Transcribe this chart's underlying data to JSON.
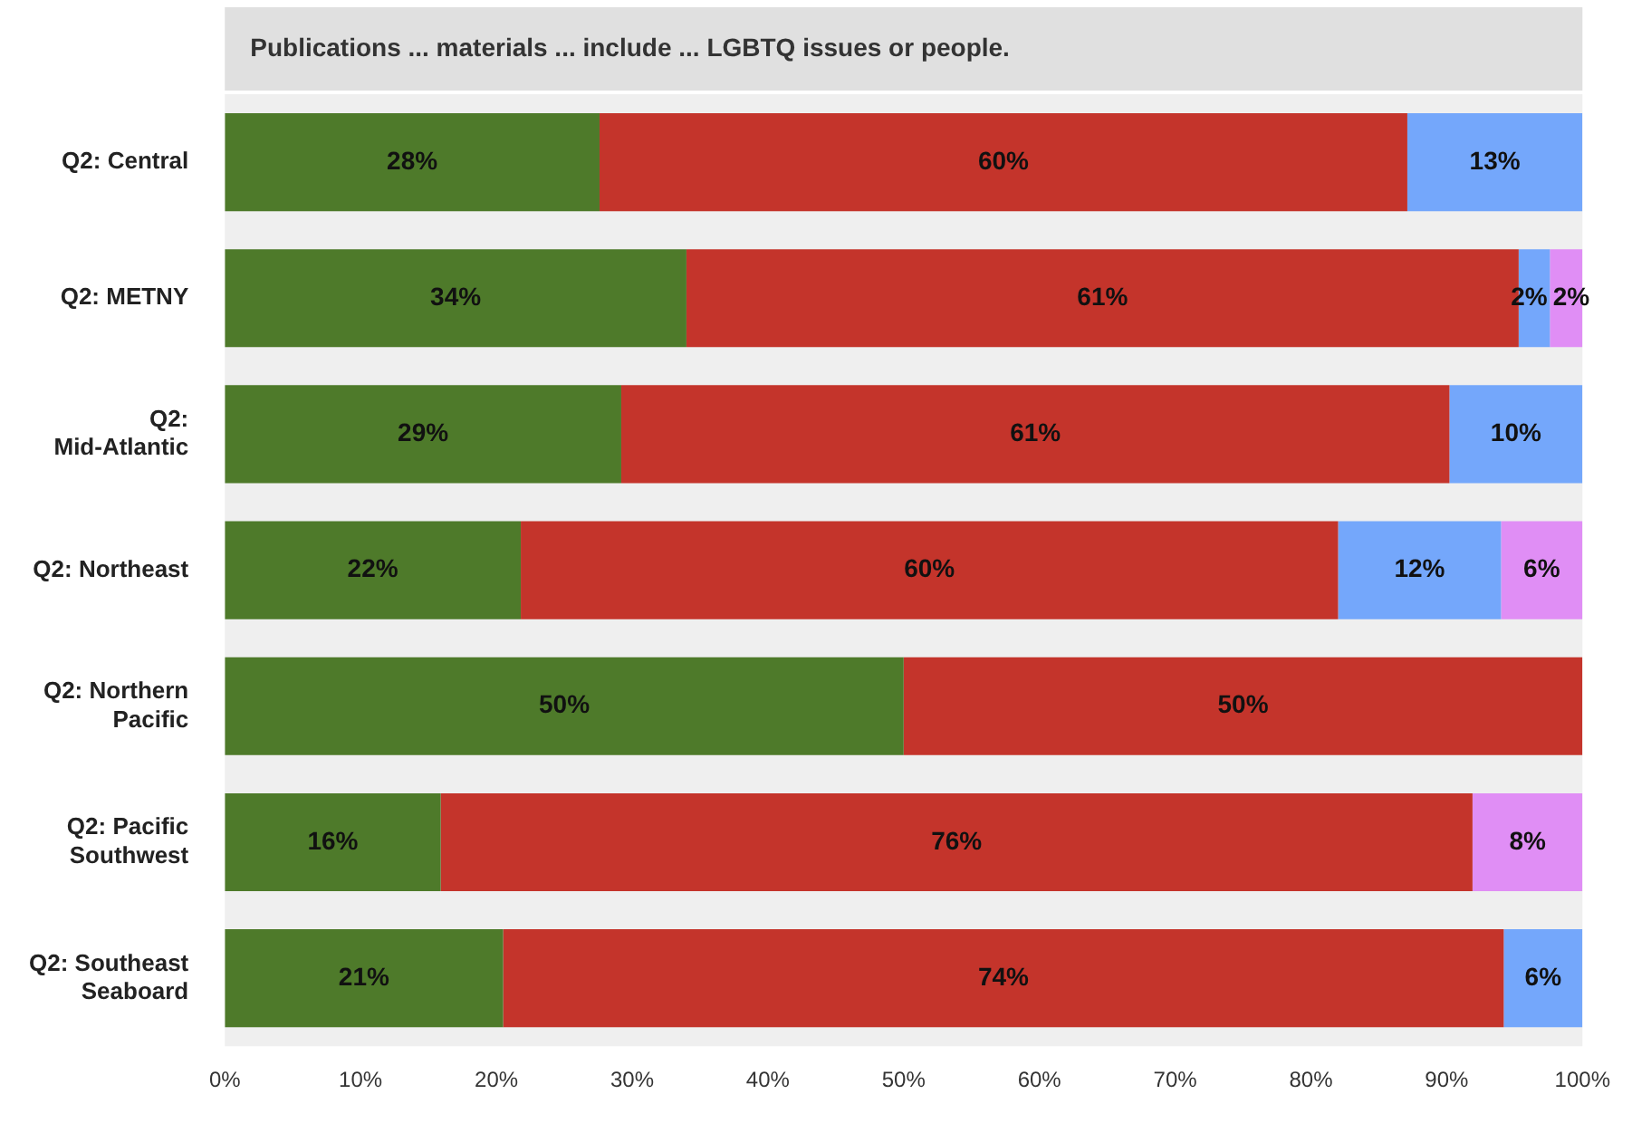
{
  "chart_data": {
    "type": "bar",
    "orientation": "horizontal",
    "stacked": true,
    "title": "Publications ... materials ... include ... LGBTQ issues or people.",
    "categories": [
      "Q2: Central",
      "Q2: METNY",
      "Q2: Mid-Atlantic",
      "Q2: Northeast",
      "Q2: Northern Pacific",
      "Q2: Pacific Southwest",
      "Q2: Southeast Seaboard"
    ],
    "series": [
      {
        "color": "#4e7a2a",
        "values": [
          27.6,
          34.0,
          29.2,
          21.8,
          50,
          15.9,
          20.5
        ],
        "value_labels": [
          "28%",
          "34%",
          "29%",
          "22%",
          "50%",
          "16%",
          "21%"
        ]
      },
      {
        "color": "#c4342b",
        "values": [
          59.5,
          61.3,
          61.0,
          60.2,
          50,
          76.0,
          73.7
        ],
        "value_labels": [
          "60%",
          "61%",
          "61%",
          "60%",
          "50%",
          "76%",
          "74%"
        ]
      },
      {
        "color": "#74a7fb",
        "values": [
          12.9,
          2.3,
          9.8,
          12.0,
          null,
          null,
          5.8
        ],
        "value_labels": [
          "13%",
          "2%",
          "10%",
          "12%",
          null,
          null,
          "6%"
        ]
      },
      {
        "color": "#e08ef5",
        "values": [
          null,
          2.4,
          null,
          6.0,
          null,
          8.1,
          null
        ],
        "value_labels": [
          null,
          "2%",
          null,
          "6%",
          null,
          "8%",
          null
        ]
      }
    ],
    "xlim": [
      0,
      100
    ],
    "xticks": [
      {
        "value": 0,
        "label": "0%"
      },
      {
        "value": 10,
        "label": "10%"
      },
      {
        "value": 20,
        "label": "20%"
      },
      {
        "value": 30,
        "label": "30%"
      },
      {
        "value": 40,
        "label": "40%"
      },
      {
        "value": 50,
        "label": "50%"
      },
      {
        "value": 60,
        "label": "60%"
      },
      {
        "value": 70,
        "label": "70%"
      },
      {
        "value": 80,
        "label": "80%"
      },
      {
        "value": 90,
        "label": "90%"
      },
      {
        "value": 100,
        "label": "100%"
      }
    ],
    "grid": false,
    "legend": false
  }
}
